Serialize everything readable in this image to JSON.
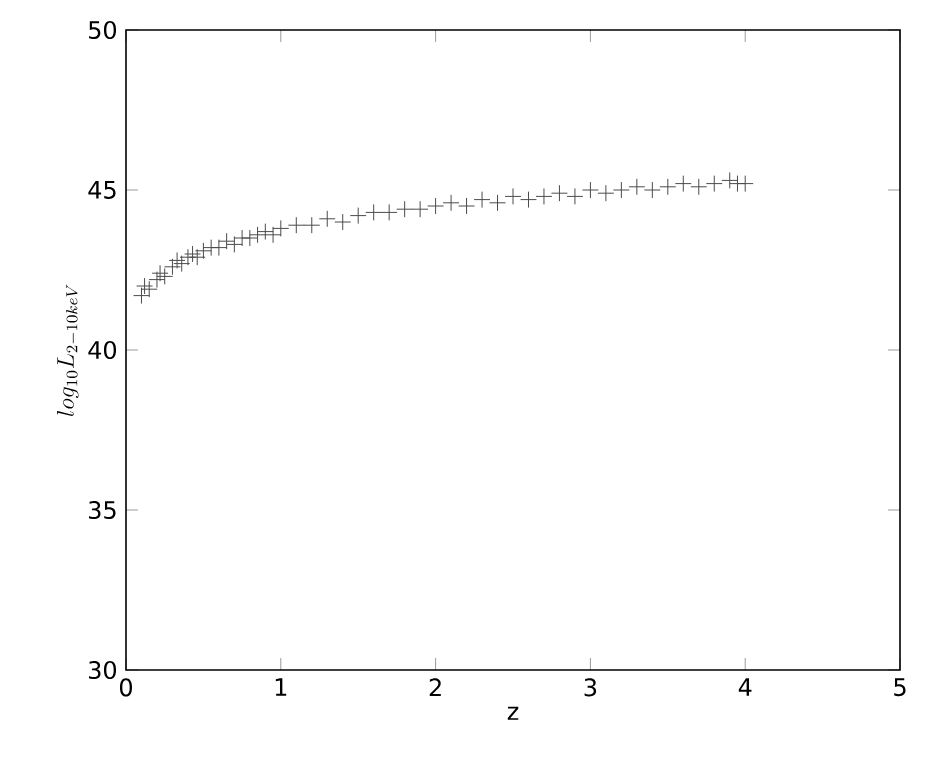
{
  "chart_data": {
    "type": "scatter",
    "xlabel": "z",
    "ylabel": "log_{10}L_{2-10keV}",
    "xlim": [
      0,
      5
    ],
    "ylim": [
      30,
      50
    ],
    "xticks": [
      0,
      1,
      2,
      3,
      4,
      5
    ],
    "yticks": [
      30,
      35,
      40,
      45,
      50
    ],
    "marker": "cross",
    "color": "#4a4a4a",
    "x": [
      0.1,
      0.12,
      0.15,
      0.2,
      0.22,
      0.25,
      0.3,
      0.33,
      0.36,
      0.4,
      0.43,
      0.46,
      0.5,
      0.55,
      0.6,
      0.65,
      0.7,
      0.75,
      0.8,
      0.85,
      0.9,
      0.95,
      1.0,
      1.1,
      1.2,
      1.3,
      1.4,
      1.5,
      1.6,
      1.7,
      1.8,
      1.9,
      2.0,
      2.1,
      2.2,
      2.3,
      2.4,
      2.5,
      2.6,
      2.7,
      2.8,
      2.9,
      3.0,
      3.1,
      3.2,
      3.3,
      3.4,
      3.5,
      3.6,
      3.7,
      3.8,
      3.9,
      3.95,
      4.0
    ],
    "values": [
      41.7,
      42.0,
      41.9,
      42.2,
      42.4,
      42.3,
      42.6,
      42.8,
      42.7,
      42.9,
      43.0,
      42.9,
      43.1,
      43.2,
      43.2,
      43.4,
      43.3,
      43.5,
      43.5,
      43.6,
      43.7,
      43.6,
      43.8,
      43.9,
      43.9,
      44.1,
      44.0,
      44.2,
      44.3,
      44.3,
      44.4,
      44.4,
      44.5,
      44.6,
      44.5,
      44.7,
      44.6,
      44.8,
      44.7,
      44.8,
      44.9,
      44.8,
      45.0,
      44.9,
      45.0,
      45.1,
      45.0,
      45.1,
      45.2,
      45.1,
      45.2,
      45.3,
      45.2,
      45.2
    ]
  }
}
